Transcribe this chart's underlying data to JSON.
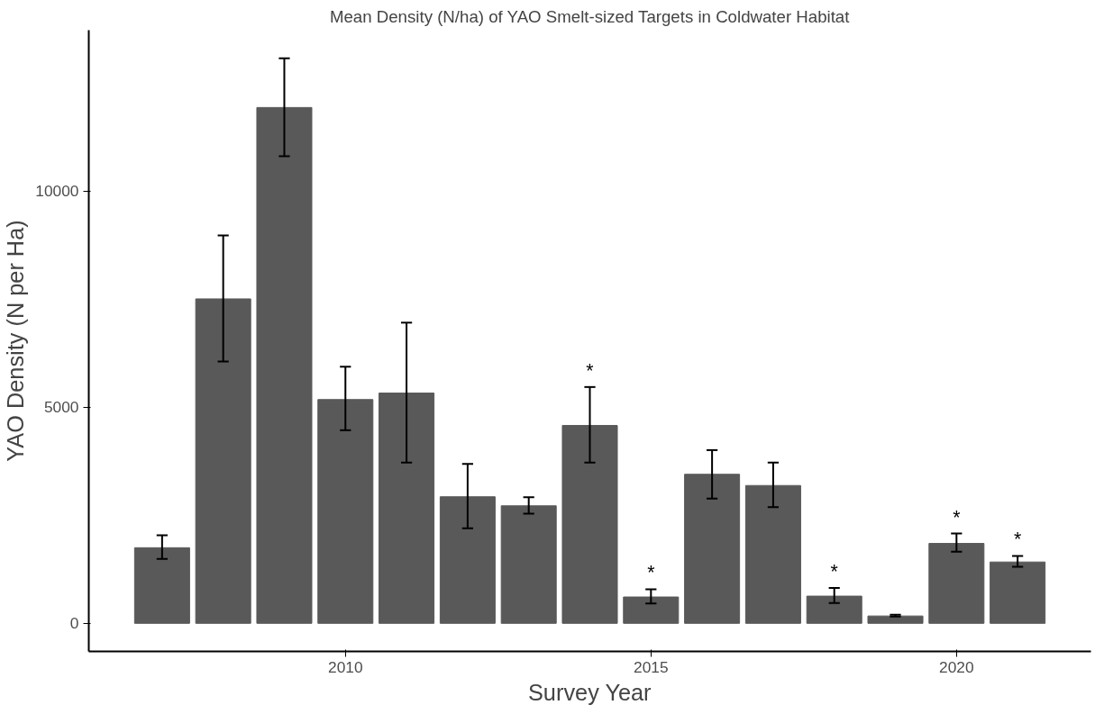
{
  "chart_data": {
    "type": "bar",
    "title": "Mean Density (N/ha) of YAO Smelt-sized Targets in Coldwater Habitat",
    "xlabel": "Survey Year",
    "ylabel": "YAO Density (N per Ha)",
    "x": [
      2007,
      2008,
      2009,
      2010,
      2011,
      2012,
      2013,
      2014,
      2015,
      2016,
      2017,
      2018,
      2019,
      2020,
      2021
    ],
    "values": [
      1750,
      7510,
      11940,
      5180,
      5330,
      2930,
      2720,
      4580,
      610,
      3450,
      3190,
      630,
      170,
      1850,
      1420
    ],
    "errors": [
      [
        1490,
        2040
      ],
      [
        6060,
        8980
      ],
      [
        10810,
        13080
      ],
      [
        4470,
        5940
      ],
      [
        3720,
        6960
      ],
      [
        2200,
        3690
      ],
      [
        2540,
        2920
      ],
      [
        3720,
        5470
      ],
      [
        460,
        790
      ],
      [
        2890,
        4010
      ],
      [
        2690,
        3720
      ],
      [
        470,
        820
      ],
      [
        160,
        200
      ],
      [
        1660,
        2080
      ],
      [
        1310,
        1560
      ]
    ],
    "color": "#595959",
    "xlim": [
      2005.8,
      2022.2
    ],
    "ylim": [
      -650,
      13730
    ],
    "xticks": [
      2010,
      2015,
      2020
    ],
    "yticks": [
      0,
      5000,
      10000
    ],
    "value_labels": [
      null,
      null,
      null,
      null,
      null,
      null,
      null,
      "*",
      "*",
      null,
      null,
      "*",
      null,
      "*",
      "*"
    ],
    "grid": false
  }
}
